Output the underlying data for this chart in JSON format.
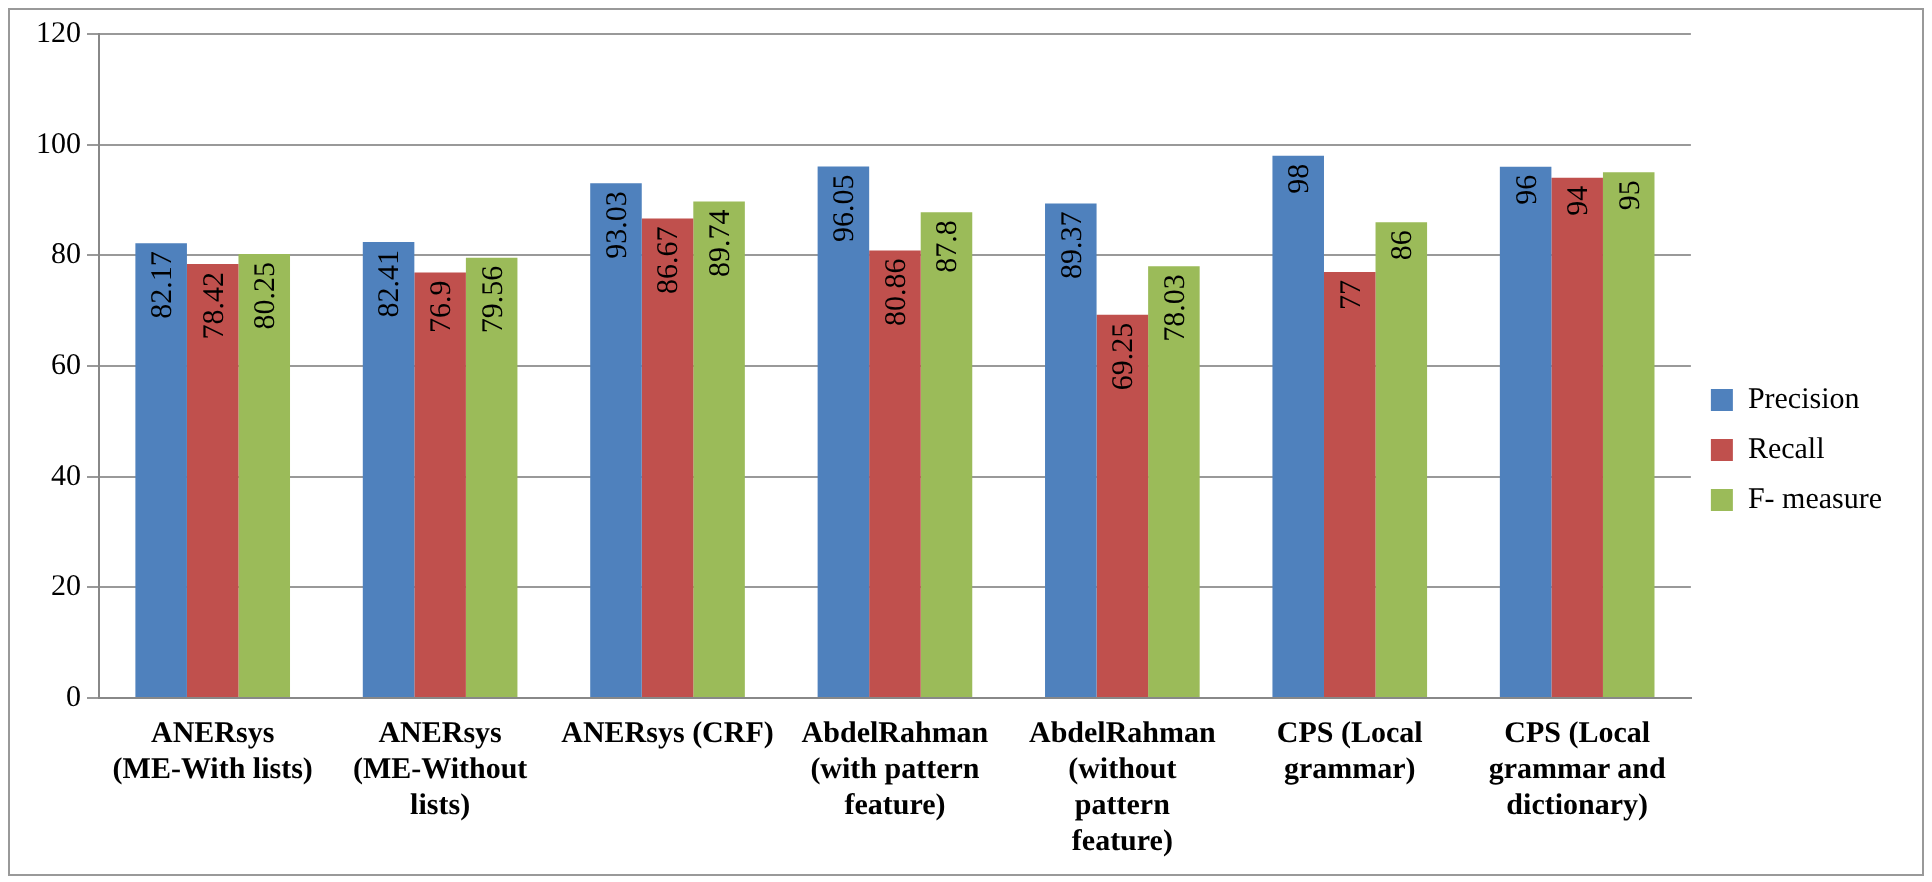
{
  "chart_data": {
    "type": "bar",
    "categories": [
      "ANERsys (ME-With lists)",
      "ANERsys (ME-Without lists)",
      "ANERsys (CRF)",
      "AbdelRahman (with pattern feature)",
      "AbdelRahman (without pattern feature)",
      "CPS (Local grammar)",
      "CPS (Local grammar and dictionary)"
    ],
    "series": [
      {
        "name": "Precision",
        "color": "#4f81bd",
        "values": [
          82.17,
          82.41,
          93.03,
          96.05,
          89.37,
          98,
          96
        ]
      },
      {
        "name": "Recall",
        "color": "#c0504d",
        "values": [
          78.42,
          76.9,
          86.67,
          80.86,
          69.25,
          77,
          94
        ]
      },
      {
        "name": "F- measure",
        "color": "#9bbb59",
        "values": [
          80.25,
          79.56,
          89.74,
          87.8,
          78.03,
          86,
          95
        ]
      }
    ],
    "ylim": [
      0,
      120
    ],
    "yticks": [
      0,
      20,
      40,
      60,
      80,
      100,
      120
    ],
    "grid": "y",
    "legend": "right",
    "data_labels": true
  }
}
